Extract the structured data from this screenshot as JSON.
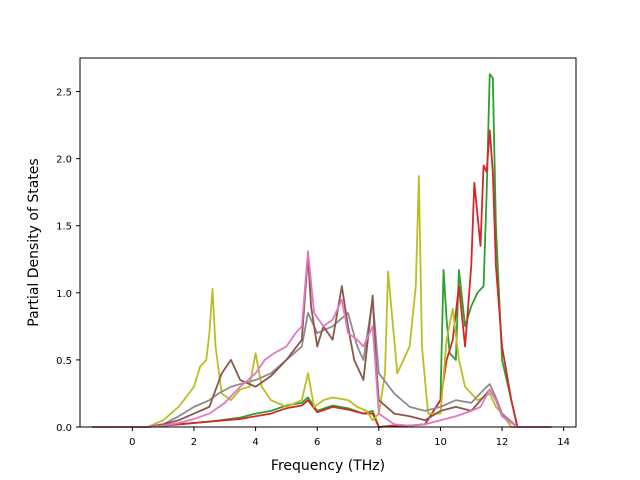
{
  "chart_data": {
    "type": "line",
    "title": "",
    "xlabel": "Frequency (THz)",
    "ylabel": "Partial Density of States",
    "xlim": [
      -1.7,
      14.4
    ],
    "ylim": [
      0.0,
      2.75
    ],
    "xticks": [
      0,
      2,
      4,
      6,
      8,
      10,
      12,
      14
    ],
    "yticks": [
      0.0,
      0.5,
      1.0,
      1.5,
      2.0,
      2.5
    ],
    "grid": false,
    "legend": "none",
    "series": [
      {
        "color": "#2ca02c",
        "x": [
          -1.3,
          0.5,
          1.5,
          2.5,
          3.5,
          4.0,
          4.5,
          5.0,
          5.5,
          5.7,
          6.0,
          6.5,
          7.0,
          7.5,
          7.8,
          8.0,
          8.5,
          9.0,
          9.5,
          10.0,
          10.1,
          10.2,
          10.3,
          10.5,
          10.6,
          10.8,
          11.0,
          11.2,
          11.4,
          11.5,
          11.6,
          11.7,
          11.8,
          12.0,
          12.3,
          12.5,
          13.6
        ],
        "y": [
          0.0,
          0.0,
          0.02,
          0.04,
          0.07,
          0.1,
          0.12,
          0.16,
          0.18,
          0.22,
          0.12,
          0.16,
          0.14,
          0.1,
          0.12,
          0.0,
          0.01,
          0.01,
          0.02,
          0.2,
          1.17,
          0.8,
          0.55,
          0.5,
          1.17,
          0.75,
          0.9,
          1.0,
          1.05,
          1.75,
          2.63,
          2.6,
          1.5,
          0.5,
          0.2,
          0.0,
          0.0
        ]
      },
      {
        "color": "#d62728",
        "x": [
          -1.3,
          0.5,
          1.5,
          2.5,
          3.5,
          4.0,
          4.5,
          5.0,
          5.5,
          5.7,
          6.0,
          6.5,
          7.0,
          7.5,
          7.8,
          8.0,
          8.5,
          9.0,
          9.5,
          10.0,
          10.2,
          10.4,
          10.6,
          10.8,
          11.0,
          11.1,
          11.3,
          11.4,
          11.5,
          11.6,
          11.7,
          11.8,
          12.0,
          12.3,
          12.5,
          13.6
        ],
        "y": [
          0.0,
          0.0,
          0.02,
          0.04,
          0.06,
          0.08,
          0.1,
          0.14,
          0.16,
          0.2,
          0.11,
          0.15,
          0.13,
          0.1,
          0.1,
          0.0,
          0.01,
          0.01,
          0.02,
          0.2,
          0.5,
          0.65,
          1.05,
          0.6,
          1.2,
          1.82,
          1.35,
          1.95,
          1.9,
          2.21,
          1.9,
          1.2,
          0.6,
          0.2,
          0.0,
          0.0
        ]
      },
      {
        "color": "#bcbd22",
        "x": [
          -1.3,
          0.5,
          1.0,
          1.5,
          2.0,
          2.2,
          2.4,
          2.5,
          2.6,
          2.7,
          2.9,
          3.2,
          3.5,
          3.8,
          4.0,
          4.2,
          4.5,
          5.0,
          5.5,
          5.7,
          5.9,
          6.2,
          6.5,
          7.0,
          7.3,
          7.6,
          7.8,
          8.0,
          8.2,
          8.3,
          8.4,
          8.6,
          8.8,
          9.0,
          9.2,
          9.3,
          9.4,
          9.6,
          10.0,
          10.2,
          10.4,
          10.6,
          10.8,
          11.0,
          11.2,
          11.4,
          11.6,
          11.8,
          12.0,
          12.3,
          13.6
        ],
        "y": [
          0.0,
          0.0,
          0.05,
          0.15,
          0.3,
          0.45,
          0.5,
          0.7,
          1.03,
          0.6,
          0.25,
          0.2,
          0.28,
          0.3,
          0.55,
          0.3,
          0.2,
          0.15,
          0.2,
          0.4,
          0.15,
          0.2,
          0.22,
          0.2,
          0.15,
          0.12,
          0.05,
          0.1,
          0.4,
          1.16,
          0.9,
          0.4,
          0.5,
          0.6,
          1.05,
          1.87,
          0.6,
          0.1,
          0.1,
          0.65,
          0.88,
          0.5,
          0.3,
          0.25,
          0.2,
          0.22,
          0.25,
          0.15,
          0.1,
          0.0,
          0.0
        ]
      },
      {
        "color": "#8c8c8c",
        "x": [
          -1.3,
          0.5,
          1.0,
          1.5,
          2.0,
          2.5,
          2.8,
          3.2,
          3.5,
          4.0,
          4.5,
          5.0,
          5.5,
          5.7,
          6.0,
          6.5,
          7.0,
          7.3,
          7.5,
          7.8,
          8.0,
          8.5,
          9.0,
          9.5,
          10.0,
          10.5,
          11.0,
          11.5,
          11.6,
          11.8,
          12.0,
          12.5,
          13.6
        ],
        "y": [
          0.0,
          0.0,
          0.02,
          0.08,
          0.15,
          0.2,
          0.25,
          0.3,
          0.32,
          0.35,
          0.4,
          0.5,
          0.6,
          0.85,
          0.7,
          0.75,
          0.85,
          0.6,
          0.5,
          0.95,
          0.4,
          0.25,
          0.15,
          0.12,
          0.15,
          0.2,
          0.18,
          0.3,
          0.32,
          0.22,
          0.1,
          0.0,
          0.0
        ]
      },
      {
        "color": "#8c564b",
        "x": [
          -1.3,
          0.5,
          1.0,
          1.5,
          2.0,
          2.5,
          2.9,
          3.2,
          3.5,
          4.0,
          4.5,
          5.0,
          5.5,
          5.7,
          5.8,
          6.0,
          6.2,
          6.5,
          6.8,
          7.0,
          7.2,
          7.5,
          7.8,
          7.9,
          8.0,
          8.5,
          9.0,
          9.5,
          10.0,
          10.5,
          11.0,
          11.5,
          11.6,
          11.8,
          12.0,
          12.5,
          13.6
        ],
        "y": [
          0.0,
          0.0,
          0.02,
          0.05,
          0.1,
          0.15,
          0.4,
          0.5,
          0.35,
          0.3,
          0.38,
          0.5,
          0.65,
          1.28,
          0.9,
          0.6,
          0.75,
          0.65,
          1.05,
          0.75,
          0.5,
          0.35,
          0.98,
          0.5,
          0.2,
          0.1,
          0.08,
          0.05,
          0.12,
          0.15,
          0.12,
          0.25,
          0.28,
          0.2,
          0.08,
          0.0,
          0.0
        ]
      },
      {
        "color": "#e377c2",
        "x": [
          -1.3,
          0.5,
          1.0,
          1.5,
          2.0,
          2.5,
          3.0,
          3.5,
          4.0,
          4.3,
          4.6,
          5.0,
          5.3,
          5.5,
          5.7,
          5.9,
          6.2,
          6.5,
          6.8,
          7.0,
          7.3,
          7.5,
          7.8,
          8.0,
          8.5,
          9.0,
          9.5,
          10.0,
          10.5,
          11.0,
          11.3,
          11.6,
          11.8,
          12.0,
          12.5,
          13.6
        ],
        "y": [
          0.0,
          0.0,
          0.01,
          0.03,
          0.06,
          0.1,
          0.18,
          0.3,
          0.4,
          0.5,
          0.55,
          0.6,
          0.7,
          0.75,
          1.31,
          0.85,
          0.75,
          0.8,
          0.95,
          0.7,
          0.65,
          0.6,
          0.75,
          0.1,
          0.02,
          0.01,
          0.02,
          0.05,
          0.08,
          0.12,
          0.15,
          0.28,
          0.2,
          0.08,
          0.0,
          0.0
        ]
      }
    ]
  }
}
